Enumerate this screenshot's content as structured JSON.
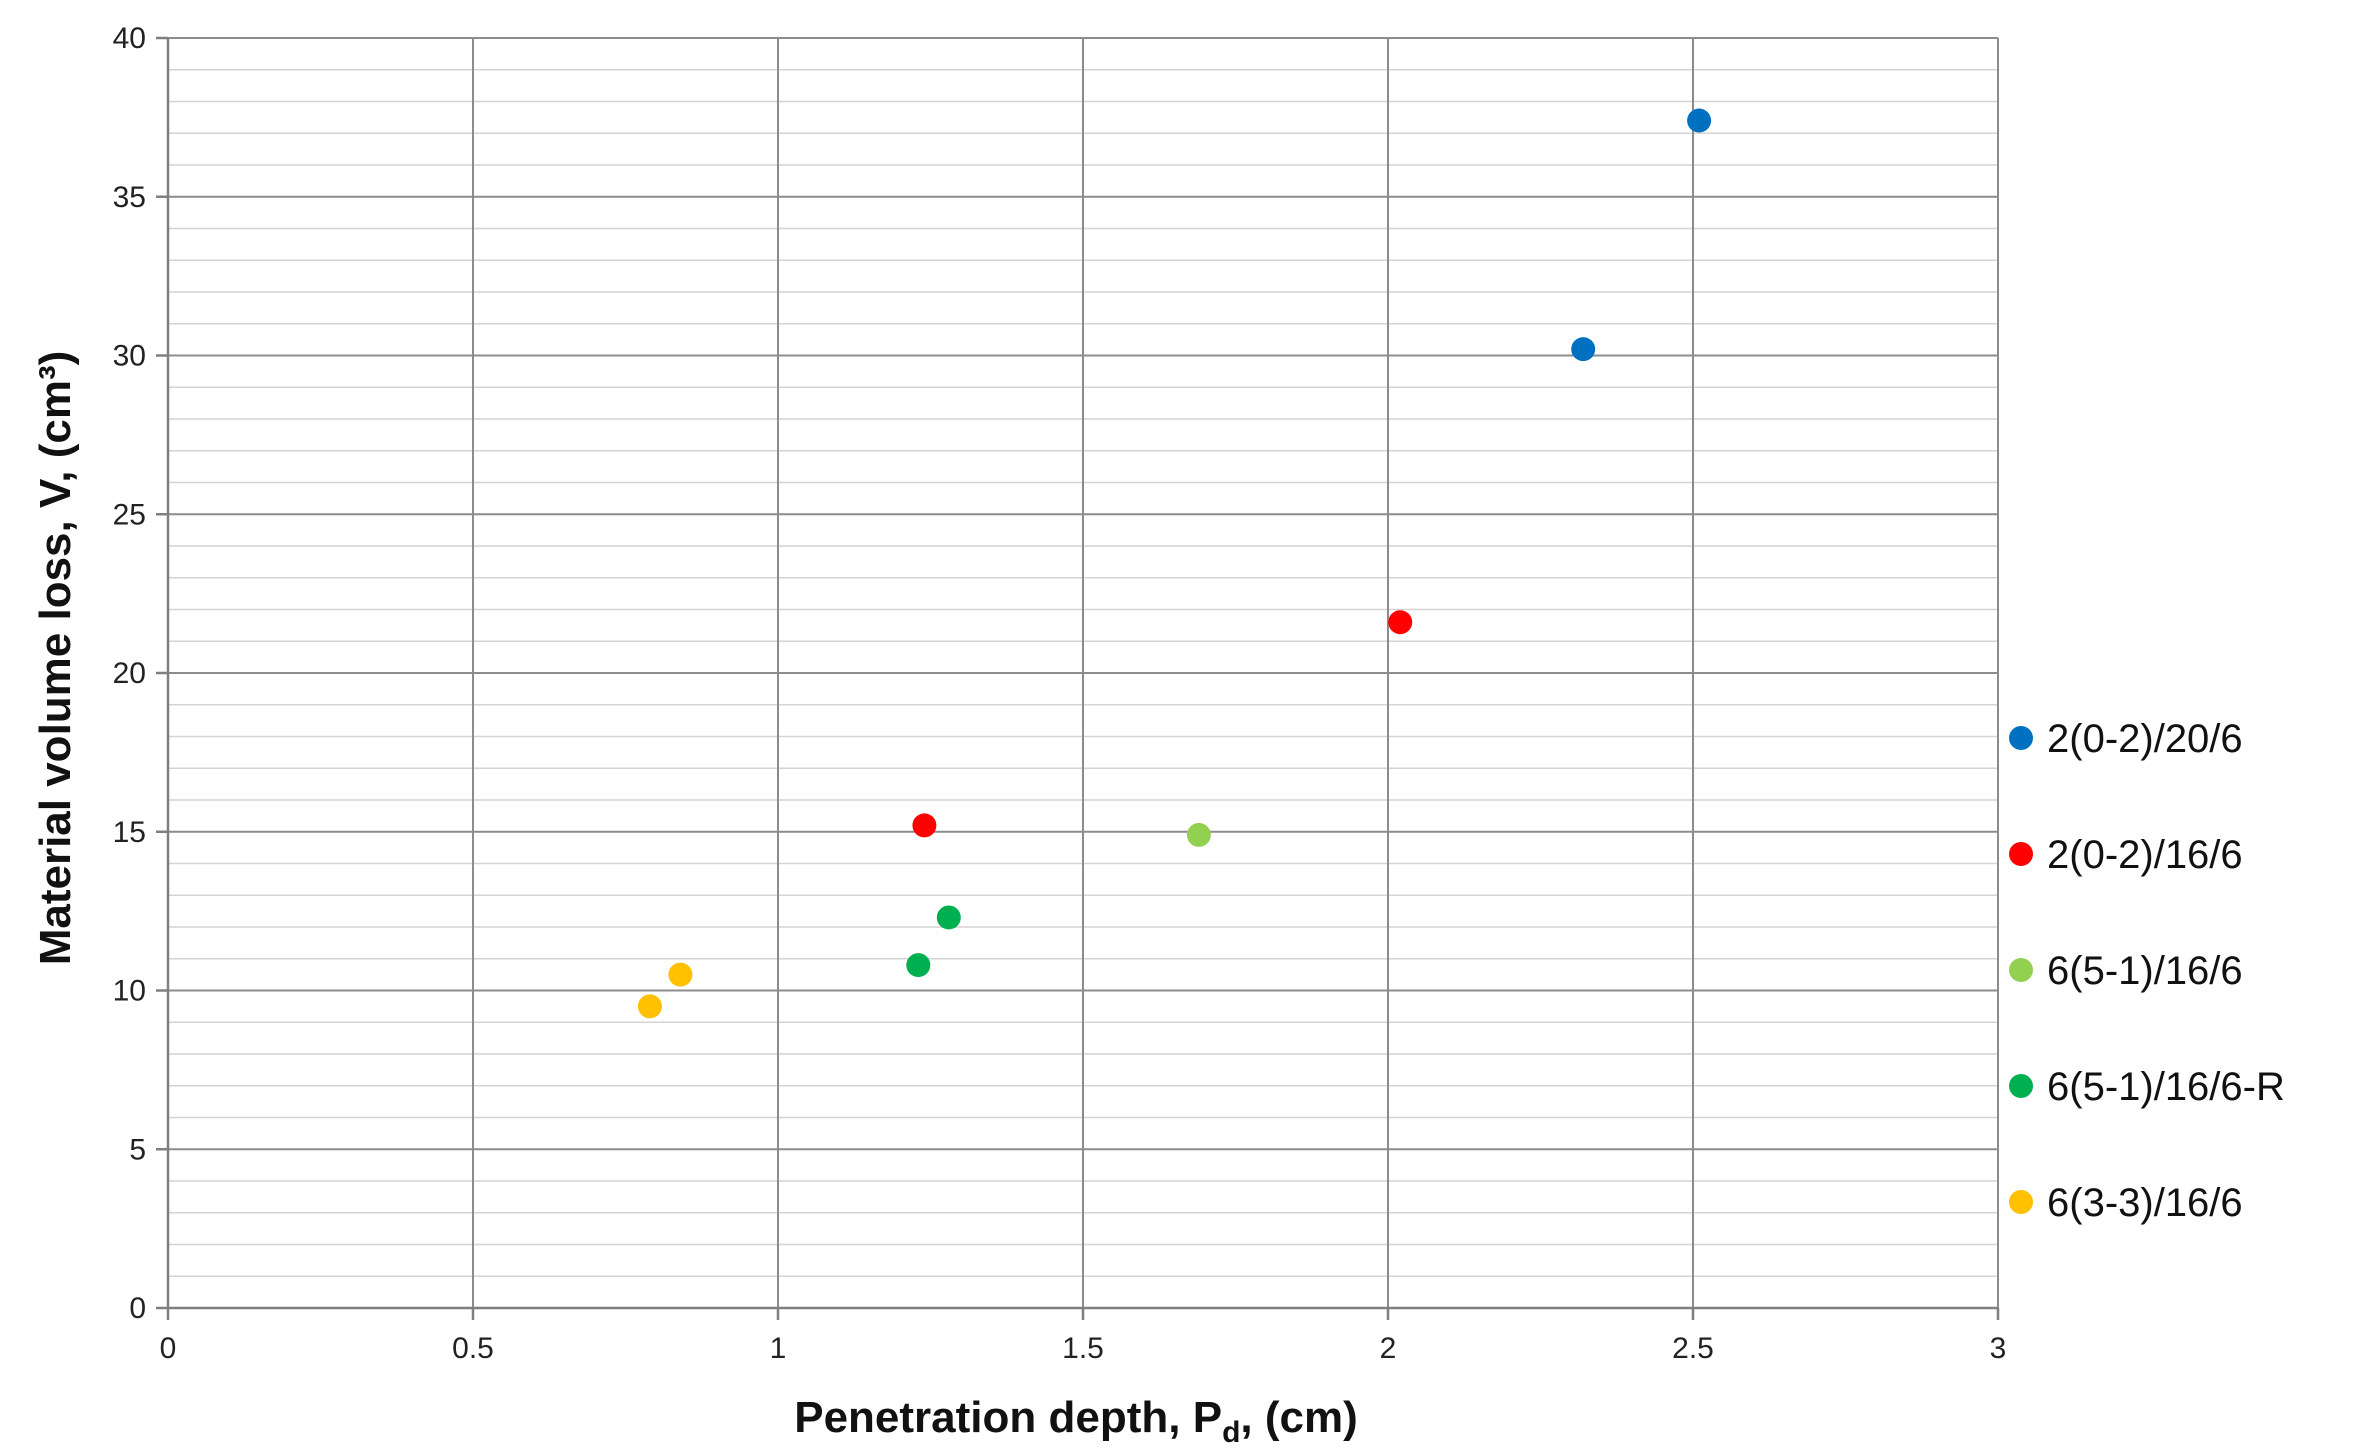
{
  "chart_data": {
    "type": "scatter",
    "title": "",
    "xlabel": "Penetration depth, P",
    "xlabel_subscript": "d",
    "xlabel_suffix": ", (cm)",
    "ylabel": "Material volume loss, V, (cm³)",
    "xlim": [
      0,
      3
    ],
    "ylim": [
      0,
      40
    ],
    "x_ticks": [
      0,
      0.5,
      1,
      1.5,
      2,
      2.5,
      3
    ],
    "x_tick_labels": [
      "0",
      "0.5",
      "1",
      "1.5",
      "2",
      "2.5",
      "3"
    ],
    "y_ticks": [
      0,
      5,
      10,
      15,
      20,
      25,
      30,
      35,
      40
    ],
    "y_tick_labels": [
      "0",
      "5",
      "10",
      "15",
      "20",
      "25",
      "30",
      "35",
      "40"
    ],
    "grid": true,
    "legend_position": "right",
    "series": [
      {
        "name": "2(0-2)/20/6",
        "color": "#0070C0",
        "points": [
          {
            "x": 2.32,
            "y": 30.2
          },
          {
            "x": 2.51,
            "y": 37.4
          }
        ]
      },
      {
        "name": "2(0-2)/16/6",
        "color": "#FF0000",
        "points": [
          {
            "x": 1.24,
            "y": 15.2
          },
          {
            "x": 2.02,
            "y": 21.6
          }
        ]
      },
      {
        "name": "6(5-1)/16/6",
        "color": "#92D050",
        "points": [
          {
            "x": 1.69,
            "y": 14.9
          }
        ]
      },
      {
        "name": "6(5-1)/16/6-R",
        "color": "#00B050",
        "points": [
          {
            "x": 1.23,
            "y": 10.8
          },
          {
            "x": 1.28,
            "y": 12.3
          }
        ]
      },
      {
        "name": "6(3-3)/16/6",
        "color": "#FFC000",
        "points": [
          {
            "x": 0.79,
            "y": 9.5
          },
          {
            "x": 0.84,
            "y": 10.5
          }
        ]
      }
    ]
  }
}
